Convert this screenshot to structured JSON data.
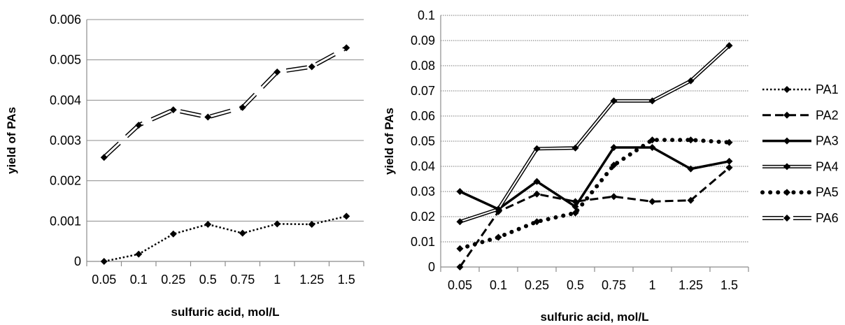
{
  "chart_data": [
    {
      "type": "line",
      "categories": [
        "0.05",
        "0.1",
        "0.25",
        "0.5",
        "0.75",
        "1",
        "1.25",
        "1.5"
      ],
      "xlabel": "sulfuric acid, mol/L",
      "ylabel": "yield of PAs",
      "ylim": [
        0,
        0.006
      ],
      "yticks": [
        "0",
        "0.001",
        "0.002",
        "0.003",
        "0.004",
        "0.005",
        "0.006"
      ],
      "grid": "horizontal",
      "legend": "none",
      "series": [
        {
          "style": "dotted",
          "values": [
            0.0,
            0.00018,
            0.00068,
            0.00092,
            0.0007,
            0.00093,
            0.00092,
            0.00112
          ]
        },
        {
          "style": "hollow-dash",
          "values": [
            0.00258,
            0.00338,
            0.00376,
            0.00358,
            0.00382,
            0.0047,
            0.00483,
            0.0053
          ]
        }
      ]
    },
    {
      "type": "line",
      "categories": [
        "0.05",
        "0.1",
        "0.25",
        "0.5",
        "0.75",
        "1",
        "1.25",
        "1.5"
      ],
      "xlabel": "sulfuric acid, mol/L",
      "ylabel": "yield of PAs",
      "ylim": [
        0,
        0.1
      ],
      "yticks": [
        "0",
        "0.01",
        "0.02",
        "0.03",
        "0.04",
        "0.05",
        "0.06",
        "0.07",
        "0.08",
        "0.09",
        "0.1"
      ],
      "grid": "horizontal-dotted",
      "legend": "right",
      "series": [
        {
          "name": "PA1",
          "style": "dotted",
          "values": [
            null,
            null,
            null,
            null,
            null,
            null,
            null,
            null
          ]
        },
        {
          "name": "PA2",
          "style": "dashed",
          "values": [
            0.0,
            0.022,
            0.029,
            0.026,
            0.028,
            0.026,
            0.0265,
            0.0395
          ]
        },
        {
          "name": "PA3",
          "style": "solid-thick",
          "values": [
            0.03,
            0.023,
            0.034,
            0.024,
            0.0475,
            0.0475,
            0.039,
            0.042
          ]
        },
        {
          "name": "PA4",
          "style": "double",
          "values": [
            0.018,
            0.023,
            0.047,
            0.0473,
            0.066,
            0.066,
            0.074,
            0.088
          ]
        },
        {
          "name": "PA5",
          "style": "round-dots",
          "values": [
            0.0073,
            0.0118,
            0.018,
            0.0215,
            0.0405,
            0.0505,
            0.0505,
            0.0495
          ]
        },
        {
          "name": "PA6",
          "style": "hollow-dash",
          "values": [
            null,
            null,
            null,
            null,
            null,
            null,
            null,
            null
          ]
        }
      ]
    }
  ]
}
